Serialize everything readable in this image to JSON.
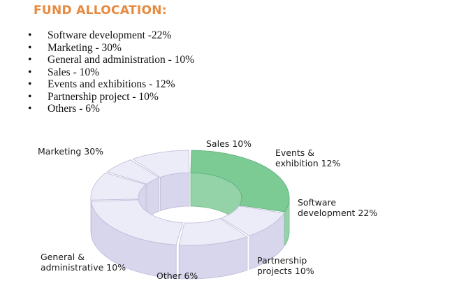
{
  "header": {
    "title": "FUND ALLOCATION:"
  },
  "bullet_list": [
    "Software development -22%",
    "Marketing - 30%",
    "General and administration - 10%",
    "Sales - 10%",
    "Events and exhibitions - 12%",
    "Partnership project - 10%",
    "Others - 6%"
  ],
  "colors": {
    "title": "#e8893d",
    "highlight_top": "#7ccb95",
    "highlight_side": "#94d2a8",
    "slice_top": "#ecebf8",
    "slice_side": "#d7d6ec",
    "slice_edge": "#bdbbd8"
  },
  "chart_data": {
    "type": "pie",
    "style": "3d-donut",
    "slices": [
      {
        "label": "Marketing 30%",
        "value": 30,
        "highlight": true
      },
      {
        "label": "Sales 10%",
        "value": 10
      },
      {
        "label": "Events & exhibition 12%",
        "value": 12
      },
      {
        "label": "Software development 22%",
        "value": 22
      },
      {
        "label": "Partnership projects 10%",
        "value": 10
      },
      {
        "label": "Other 6%",
        "value": 6
      },
      {
        "label": "General & administrative 10%",
        "value": 10
      }
    ]
  }
}
